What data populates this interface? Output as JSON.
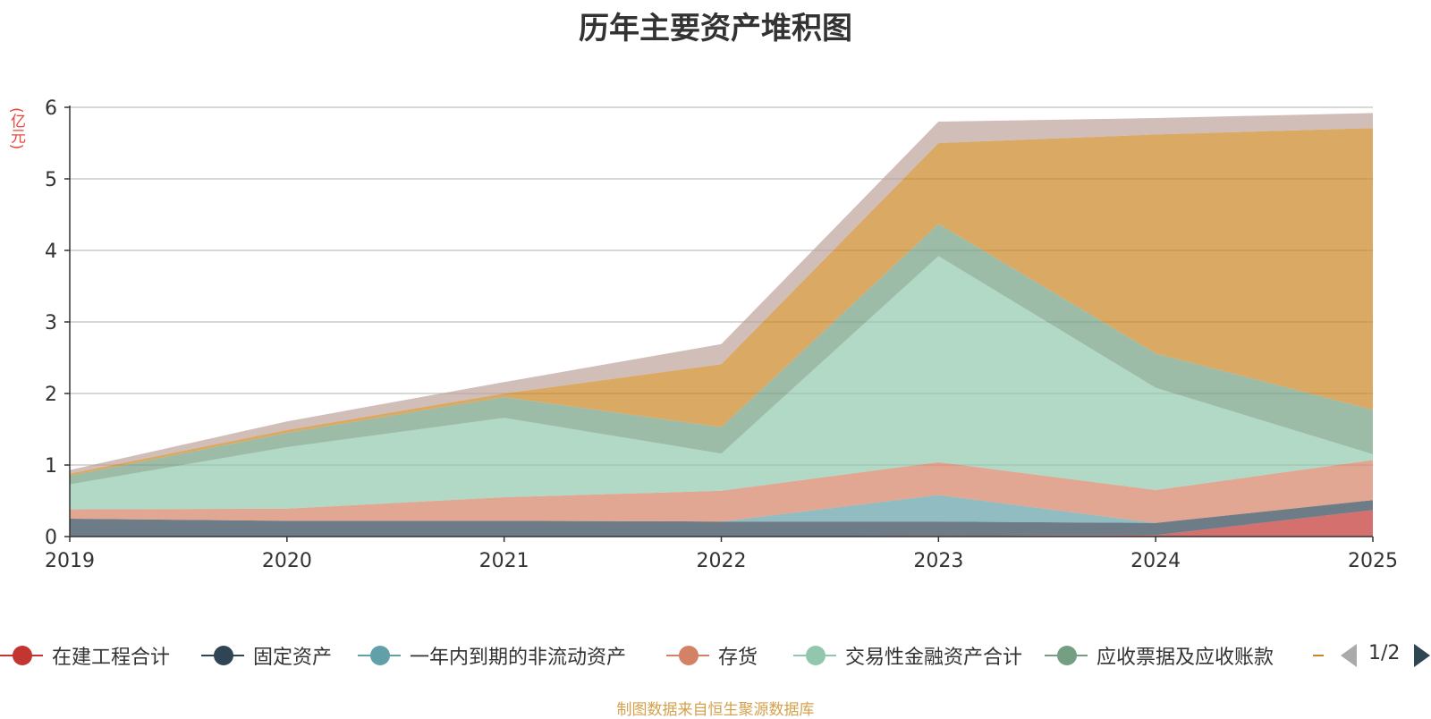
{
  "chart_data": {
    "type": "area",
    "stacked": true,
    "title": "历年主要资产堆积图",
    "unit_label": "(亿元)",
    "categories": [
      "2019",
      "2020",
      "2021",
      "2022",
      "2023",
      "2024",
      "2025"
    ],
    "ylim": [
      0,
      6
    ],
    "y_ticks": [
      "0",
      "1",
      "2",
      "3",
      "4",
      "5",
      "6"
    ],
    "grid": true,
    "legend_position": "bottom",
    "series": [
      {
        "name": "在建工程合计",
        "color": "#c23531",
        "values": [
          0.0,
          0.0,
          0.0,
          0.0,
          0.01,
          0.02,
          0.37
        ]
      },
      {
        "name": "固定资产",
        "color": "#2f4554",
        "values": [
          0.25,
          0.22,
          0.22,
          0.21,
          0.2,
          0.17,
          0.14
        ]
      },
      {
        "name": "一年内到期的非流动资产",
        "color": "#61a0a8",
        "values": [
          0.0,
          0.0,
          0.0,
          0.0,
          0.37,
          0.0,
          0.0
        ]
      },
      {
        "name": "存货",
        "color": "#d48265",
        "values": [
          0.13,
          0.17,
          0.33,
          0.43,
          0.46,
          0.46,
          0.56
        ]
      },
      {
        "name": "交易性金融资产合计",
        "color": "#91c7ae",
        "values": [
          0.35,
          0.86,
          1.11,
          0.52,
          2.88,
          1.43,
          0.08
        ]
      },
      {
        "name": "应收票据及应收账款",
        "color": "#749f83",
        "values": [
          0.12,
          0.2,
          0.29,
          0.37,
          0.45,
          0.48,
          0.62
        ]
      },
      {
        "name": "",
        "color": "#ca8622",
        "values": [
          0.03,
          0.04,
          0.05,
          0.88,
          1.13,
          3.06,
          3.94
        ]
      },
      {
        "name": "",
        "color": "#bda29a",
        "values": [
          0.05,
          0.12,
          0.16,
          0.28,
          0.3,
          0.23,
          0.21
        ]
      }
    ]
  },
  "legend": {
    "page_indicator": "1/2",
    "prev_icon": "triangle-left-icon",
    "next_icon": "triangle-right-icon"
  },
  "footer": {
    "source_note": "制图数据来自恒生聚源数据库"
  }
}
